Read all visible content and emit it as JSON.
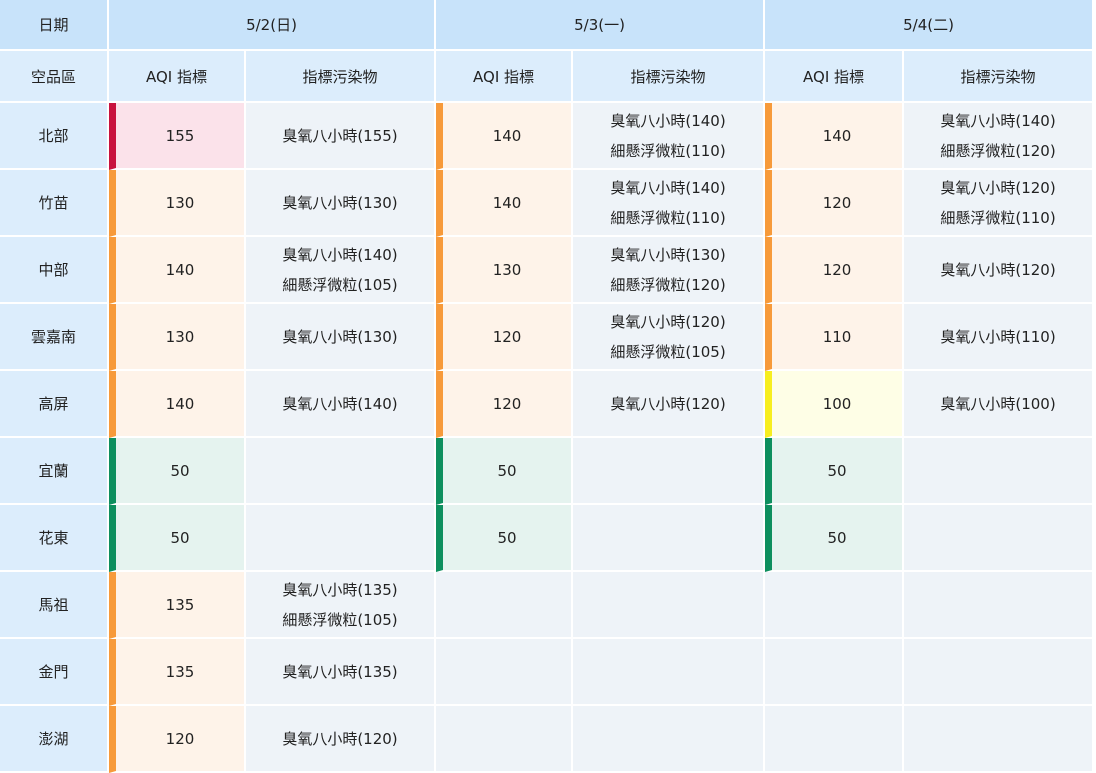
{
  "header": {
    "date_label": "日期",
    "region_label": "空品區",
    "aqi_label": "AQI 指標",
    "pollutant_label": "指標污染物",
    "dates": [
      "5/2(日)",
      "5/3(一)",
      "5/4(二)"
    ]
  },
  "colors": {
    "orange": "#f79a3a",
    "red": "#c8123e",
    "yellow": "#f7ee1f",
    "green": "#0d8f5e"
  },
  "rows": [
    {
      "region": "北部",
      "days": [
        {
          "aqi": "155",
          "level": "red",
          "pollutants": [
            "臭氧八小時(155)"
          ]
        },
        {
          "aqi": "140",
          "level": "orange",
          "pollutants": [
            "臭氧八小時(140)",
            "細懸浮微粒(110)"
          ]
        },
        {
          "aqi": "140",
          "level": "orange",
          "pollutants": [
            "臭氧八小時(140)",
            "細懸浮微粒(120)"
          ]
        }
      ]
    },
    {
      "region": "竹苗",
      "days": [
        {
          "aqi": "130",
          "level": "orange",
          "pollutants": [
            "臭氧八小時(130)"
          ]
        },
        {
          "aqi": "140",
          "level": "orange",
          "pollutants": [
            "臭氧八小時(140)",
            "細懸浮微粒(110)"
          ]
        },
        {
          "aqi": "120",
          "level": "orange",
          "pollutants": [
            "臭氧八小時(120)",
            "細懸浮微粒(110)"
          ]
        }
      ]
    },
    {
      "region": "中部",
      "days": [
        {
          "aqi": "140",
          "level": "orange",
          "pollutants": [
            "臭氧八小時(140)",
            "細懸浮微粒(105)"
          ]
        },
        {
          "aqi": "130",
          "level": "orange",
          "pollutants": [
            "臭氧八小時(130)",
            "細懸浮微粒(120)"
          ]
        },
        {
          "aqi": "120",
          "level": "orange",
          "pollutants": [
            "臭氧八小時(120)"
          ]
        }
      ]
    },
    {
      "region": "雲嘉南",
      "days": [
        {
          "aqi": "130",
          "level": "orange",
          "pollutants": [
            "臭氧八小時(130)"
          ]
        },
        {
          "aqi": "120",
          "level": "orange",
          "pollutants": [
            "臭氧八小時(120)",
            "細懸浮微粒(105)"
          ]
        },
        {
          "aqi": "110",
          "level": "orange",
          "pollutants": [
            "臭氧八小時(110)"
          ]
        }
      ]
    },
    {
      "region": "高屏",
      "days": [
        {
          "aqi": "140",
          "level": "orange",
          "pollutants": [
            "臭氧八小時(140)"
          ]
        },
        {
          "aqi": "120",
          "level": "orange",
          "pollutants": [
            "臭氧八小時(120)"
          ]
        },
        {
          "aqi": "100",
          "level": "yellow",
          "pollutants": [
            "臭氧八小時(100)"
          ]
        }
      ]
    },
    {
      "region": "宜蘭",
      "days": [
        {
          "aqi": "50",
          "level": "green",
          "pollutants": []
        },
        {
          "aqi": "50",
          "level": "green",
          "pollutants": []
        },
        {
          "aqi": "50",
          "level": "green",
          "pollutants": []
        }
      ]
    },
    {
      "region": "花東",
      "days": [
        {
          "aqi": "50",
          "level": "green",
          "pollutants": []
        },
        {
          "aqi": "50",
          "level": "green",
          "pollutants": []
        },
        {
          "aqi": "50",
          "level": "green",
          "pollutants": []
        }
      ]
    },
    {
      "region": "馬祖",
      "days": [
        {
          "aqi": "135",
          "level": "orange",
          "pollutants": [
            "臭氧八小時(135)",
            "細懸浮微粒(105)"
          ]
        },
        null,
        null
      ]
    },
    {
      "region": "金門",
      "days": [
        {
          "aqi": "135",
          "level": "orange",
          "pollutants": [
            "臭氧八小時(135)"
          ]
        },
        null,
        null
      ]
    },
    {
      "region": "澎湖",
      "days": [
        {
          "aqi": "120",
          "level": "orange",
          "pollutants": [
            "臭氧八小時(120)"
          ]
        },
        null,
        null
      ]
    }
  ]
}
